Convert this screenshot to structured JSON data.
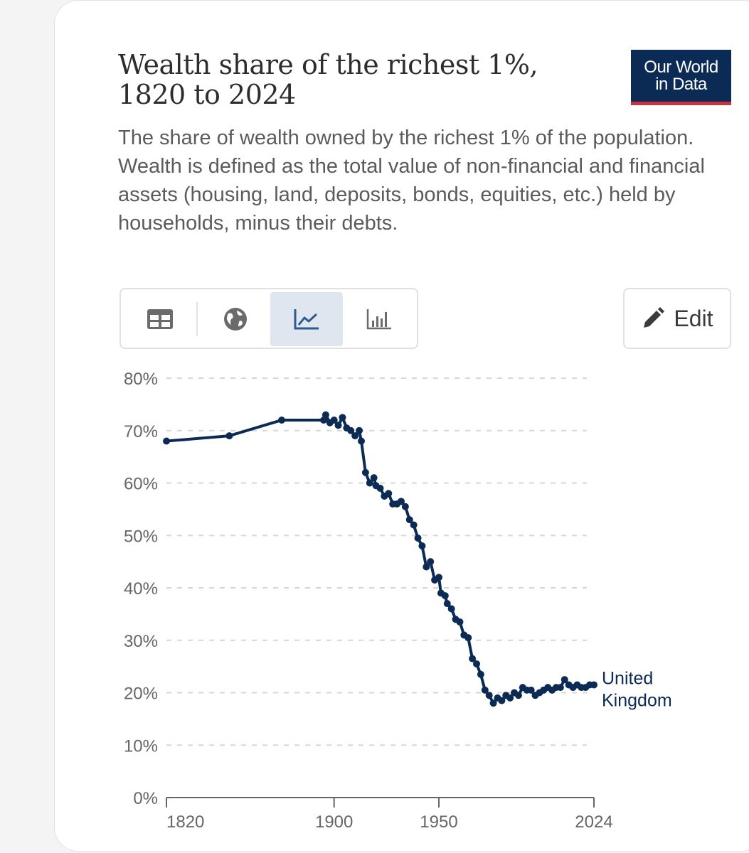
{
  "header": {
    "title": "Wealth share of the richest 1%, 1820 to 2024",
    "subtitle": "The share of wealth owned by the richest 1% of the population. Wealth is defined as the total value of non-financial and financial assets (housing, land, deposits, bonds, equities, etc.) held by households, minus their debts.",
    "logo_line1": "Our World",
    "logo_line2": "in Data"
  },
  "toolbar": {
    "tabs": [
      {
        "icon": "table-icon"
      },
      {
        "icon": "globe-icon"
      },
      {
        "icon": "line-chart-icon",
        "active": true
      },
      {
        "icon": "bar-chart-icon"
      }
    ],
    "edit_label": "Edit",
    "edit_icon": "pencil-icon"
  },
  "colors": {
    "series": "#0c2b54",
    "logo_bg": "#0c2b54",
    "logo_accent": "#c8353f",
    "active_tab": "#dfe6f0"
  },
  "chart_data": {
    "type": "line",
    "title": "",
    "xlabel": "",
    "ylabel": "",
    "ylim": [
      0,
      80
    ],
    "xlim": [
      1820,
      2024
    ],
    "y_ticks": [
      0,
      10,
      20,
      30,
      40,
      50,
      60,
      70,
      80
    ],
    "y_tick_labels": [
      "0%",
      "10%",
      "20%",
      "30%",
      "40%",
      "50%",
      "60%",
      "70%",
      "80%"
    ],
    "x_ticks": [
      1820,
      1900,
      1950,
      2024
    ],
    "x_tick_labels": [
      "1820",
      "1900",
      "1950",
      "2024"
    ],
    "grid": "horizontal-dashed",
    "series": [
      {
        "name": "United Kingdom",
        "label_line1": "United",
        "label_line2": "Kingdom",
        "x": [
          1820,
          1850,
          1875,
          1895,
          1896,
          1898,
          1900,
          1902,
          1904,
          1906,
          1908,
          1910,
          1912,
          1913,
          1915,
          1917,
          1919,
          1920,
          1922,
          1924,
          1926,
          1928,
          1930,
          1932,
          1934,
          1936,
          1938,
          1940,
          1942,
          1944,
          1946,
          1948,
          1950,
          1951,
          1953,
          1954,
          1956,
          1958,
          1960,
          1962,
          1964,
          1966,
          1968,
          1970,
          1972,
          1974,
          1976,
          1978,
          1980,
          1982,
          1984,
          1986,
          1988,
          1990,
          1992,
          1994,
          1996,
          1998,
          2000,
          2002,
          2004,
          2006,
          2008,
          2010,
          2012,
          2014,
          2016,
          2018,
          2020,
          2022,
          2024
        ],
        "y": [
          68,
          69,
          72,
          72,
          73,
          71.5,
          72,
          71,
          72.5,
          70.5,
          70,
          69,
          70,
          68,
          62,
          60,
          61,
          59.5,
          59,
          57.5,
          58,
          56,
          56,
          56.5,
          55.5,
          53,
          52,
          49.5,
          48,
          44,
          45,
          41.5,
          42,
          39,
          38.5,
          37,
          36,
          34,
          33.5,
          31,
          30.5,
          26.5,
          25.5,
          23.5,
          20.5,
          19.5,
          18,
          19,
          18.5,
          19.5,
          19,
          20,
          19.5,
          21,
          20.5,
          20.5,
          19.5,
          20,
          20.5,
          21,
          20.5,
          21,
          21,
          22.5,
          21.5,
          21,
          21.5,
          21,
          21,
          21.5,
          21.5
        ]
      }
    ]
  }
}
